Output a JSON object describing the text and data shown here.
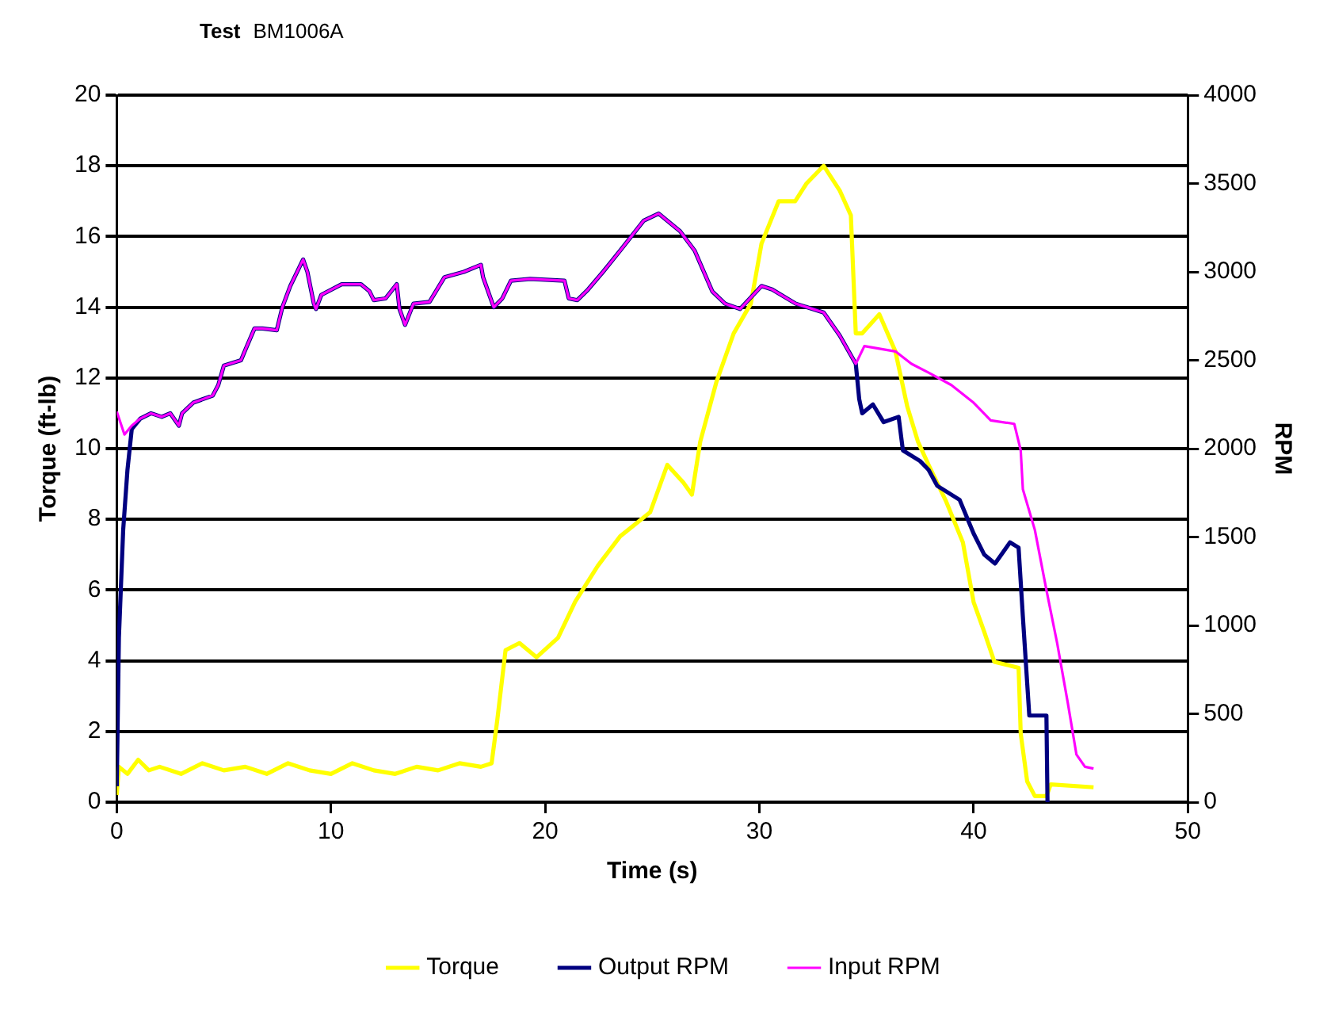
{
  "chart_data": {
    "type": "line",
    "title": "Test",
    "subtitle": "BM1006A",
    "xlabel": "Time (s)",
    "ylabel": "Torque (ft-lb)",
    "y2label": "RPM",
    "xlim": [
      0,
      50
    ],
    "xticks": [
      0,
      10,
      20,
      30,
      40,
      50
    ],
    "ylim": [
      0,
      20
    ],
    "yticks": [
      0,
      2,
      4,
      6,
      8,
      10,
      12,
      14,
      16,
      18,
      20
    ],
    "y2lim": [
      0,
      4000
    ],
    "y2ticks": [
      0,
      500,
      1000,
      1500,
      2000,
      2500,
      3000,
      3500,
      4000
    ],
    "grid": "y",
    "legend": "bottom",
    "marker": "none",
    "line_style": "solid",
    "series": [
      {
        "name": "Torque",
        "color": "#ffff00",
        "x": [
          0,
          0.1,
          0.5,
          1,
          1.5,
          2,
          3,
          4,
          5,
          6,
          7,
          8,
          9,
          10,
          11,
          12,
          13,
          14,
          15,
          16,
          17,
          17.5,
          17.76,
          18.15,
          18.8,
          19.6,
          20.6,
          21.4,
          22.45,
          23.5,
          24.9,
          25.7,
          26.45,
          26.85,
          27.24,
          28,
          28.8,
          29.6,
          30.1,
          30.9,
          31.67,
          32.2,
          33,
          33.75,
          34.27,
          34.5,
          34.8,
          35.6,
          36.35,
          36.9,
          37.4,
          37.9,
          38.7,
          39.5,
          40,
          40.5,
          40.97,
          42.1,
          42.2,
          42.5,
          42.86,
          43.4,
          43.6,
          45.6
        ],
        "values": [
          0.2,
          1,
          0.8,
          1.2,
          0.9,
          1,
          0.8,
          1.1,
          0.9,
          1,
          0.8,
          1.1,
          0.9,
          0.8,
          1.1,
          0.9,
          0.8,
          1,
          0.9,
          1.1,
          1,
          1.1,
          2.3,
          4.3,
          4.5,
          4.1,
          4.65,
          5.67,
          6.68,
          7.52,
          8.2,
          9.54,
          9.04,
          8.7,
          10.2,
          11.9,
          13.26,
          14.1,
          15.8,
          17,
          17,
          17.5,
          18,
          17.3,
          16.6,
          13.26,
          13.26,
          13.8,
          12.75,
          11.2,
          10.2,
          9.54,
          8.53,
          7.35,
          5.66,
          4.81,
          3.97,
          3.8,
          1.94,
          0.59,
          0.17,
          0.17,
          0.5,
          0.42
        ],
        "axis": "y"
      },
      {
        "name": "Output RPM",
        "color": "#000080",
        "x": [
          0,
          0.1,
          0.3,
          0.5,
          0.7,
          1.1,
          1.6,
          2.1,
          2.5,
          2.9,
          3.05,
          3.57,
          4.48,
          4.74,
          5,
          5.8,
          6.04,
          6.43,
          6.8,
          7.47,
          7.73,
          8.1,
          8.7,
          8.9,
          9.2,
          9.3,
          9.55,
          10.5,
          11.4,
          11.8,
          12,
          12.55,
          13.07,
          13.2,
          13.46,
          13.85,
          14.6,
          15.3,
          16.2,
          17,
          17.1,
          17.6,
          18,
          18.4,
          19.3,
          20.9,
          21.1,
          21.5,
          22,
          22.7,
          23.5,
          24.6,
          25.3,
          26.3,
          26.98,
          27.8,
          28.4,
          29.1,
          30.1,
          30.6,
          31.7,
          33,
          33.75,
          34.5,
          34.66,
          34.8,
          35.3,
          35.8,
          36.5,
          36.7,
          37.5,
          37.9,
          38.3,
          39.35,
          40,
          40.5,
          41,
          41.7,
          42.1,
          42.3,
          42.6,
          43.4,
          43.45
        ],
        "values": [
          90,
          930,
          1540,
          1880,
          2110,
          2170,
          2200,
          2180,
          2200,
          2130,
          2200,
          2260,
          2300,
          2360,
          2470,
          2500,
          2570,
          2680,
          2680,
          2670,
          2800,
          2920,
          3070,
          3000,
          2820,
          2790,
          2870,
          2930,
          2930,
          2890,
          2840,
          2850,
          2930,
          2790,
          2700,
          2820,
          2830,
          2970,
          3000,
          3040,
          2970,
          2800,
          2850,
          2950,
          2960,
          2950,
          2850,
          2840,
          2900,
          3000,
          3120,
          3290,
          3330,
          3230,
          3120,
          2890,
          2820,
          2790,
          2920,
          2900,
          2820,
          2770,
          2640,
          2480,
          2280,
          2200,
          2250,
          2150,
          2180,
          1990,
          1930,
          1880,
          1790,
          1710,
          1520,
          1400,
          1350,
          1470,
          1440,
          1050,
          490,
          490,
          0
        ],
        "axis": "y2"
      },
      {
        "name": "Input RPM",
        "color": "#ff00ff",
        "x": [
          0,
          0.36,
          0.7,
          1.1,
          1.6,
          2.1,
          2.5,
          2.9,
          3.05,
          3.57,
          4.48,
          4.74,
          5,
          5.8,
          6.04,
          6.43,
          6.8,
          7.47,
          7.73,
          8.1,
          8.7,
          8.9,
          9.2,
          9.3,
          9.55,
          10.5,
          11.4,
          11.8,
          12,
          12.55,
          13.07,
          13.2,
          13.46,
          13.85,
          14.6,
          15.3,
          16.2,
          17,
          17.1,
          17.6,
          18,
          18.4,
          19.3,
          20.9,
          21.1,
          21.5,
          22,
          22.7,
          23.5,
          24.6,
          25.3,
          26.3,
          26.98,
          27.8,
          28.4,
          29.1,
          30.1,
          30.6,
          31.7,
          33,
          33.75,
          34.5,
          34.9,
          36.35,
          37.1,
          37.9,
          38.96,
          40,
          40.8,
          41.9,
          42.2,
          42.3,
          42.86,
          43.4,
          43.9,
          44.4,
          44.8,
          45.2,
          45.6
        ],
        "values": [
          2210,
          2080,
          2130,
          2170,
          2200,
          2180,
          2200,
          2130,
          2200,
          2260,
          2300,
          2360,
          2470,
          2500,
          2570,
          2680,
          2680,
          2670,
          2800,
          2920,
          3070,
          3000,
          2820,
          2790,
          2870,
          2930,
          2930,
          2890,
          2840,
          2850,
          2930,
          2790,
          2700,
          2820,
          2830,
          2970,
          3000,
          3040,
          2970,
          2800,
          2850,
          2950,
          2960,
          2950,
          2850,
          2840,
          2900,
          3000,
          3120,
          3290,
          3330,
          3230,
          3120,
          2890,
          2820,
          2790,
          2920,
          2900,
          2820,
          2770,
          2640,
          2480,
          2580,
          2550,
          2480,
          2430,
          2360,
          2260,
          2160,
          2140,
          1990,
          1770,
          1540,
          1200,
          900,
          560,
          270,
          200,
          190
        ],
        "axis": "y2"
      }
    ]
  }
}
